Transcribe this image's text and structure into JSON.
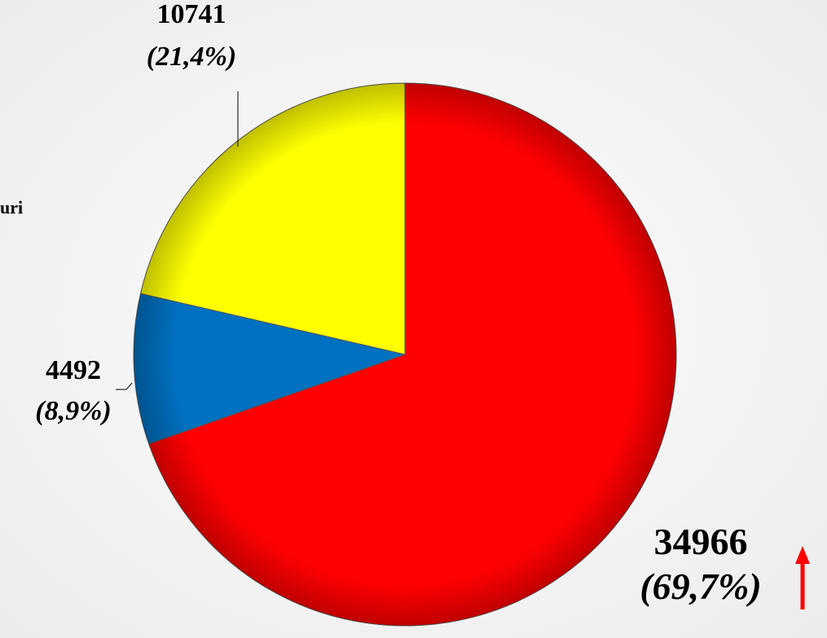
{
  "chart_data": {
    "type": "pie",
    "categories": [
      null,
      null,
      null
    ],
    "values": [
      34966,
      4492,
      10741
    ],
    "percentages": [
      69.7,
      8.9,
      21.4
    ],
    "percentage_labels": [
      "(69,7%)",
      "(8,9%)",
      "(21,4%)"
    ],
    "colors": [
      "#ff0000",
      "#0070c0",
      "#ffff00"
    ],
    "annotations": [
      "uri"
    ]
  }
}
